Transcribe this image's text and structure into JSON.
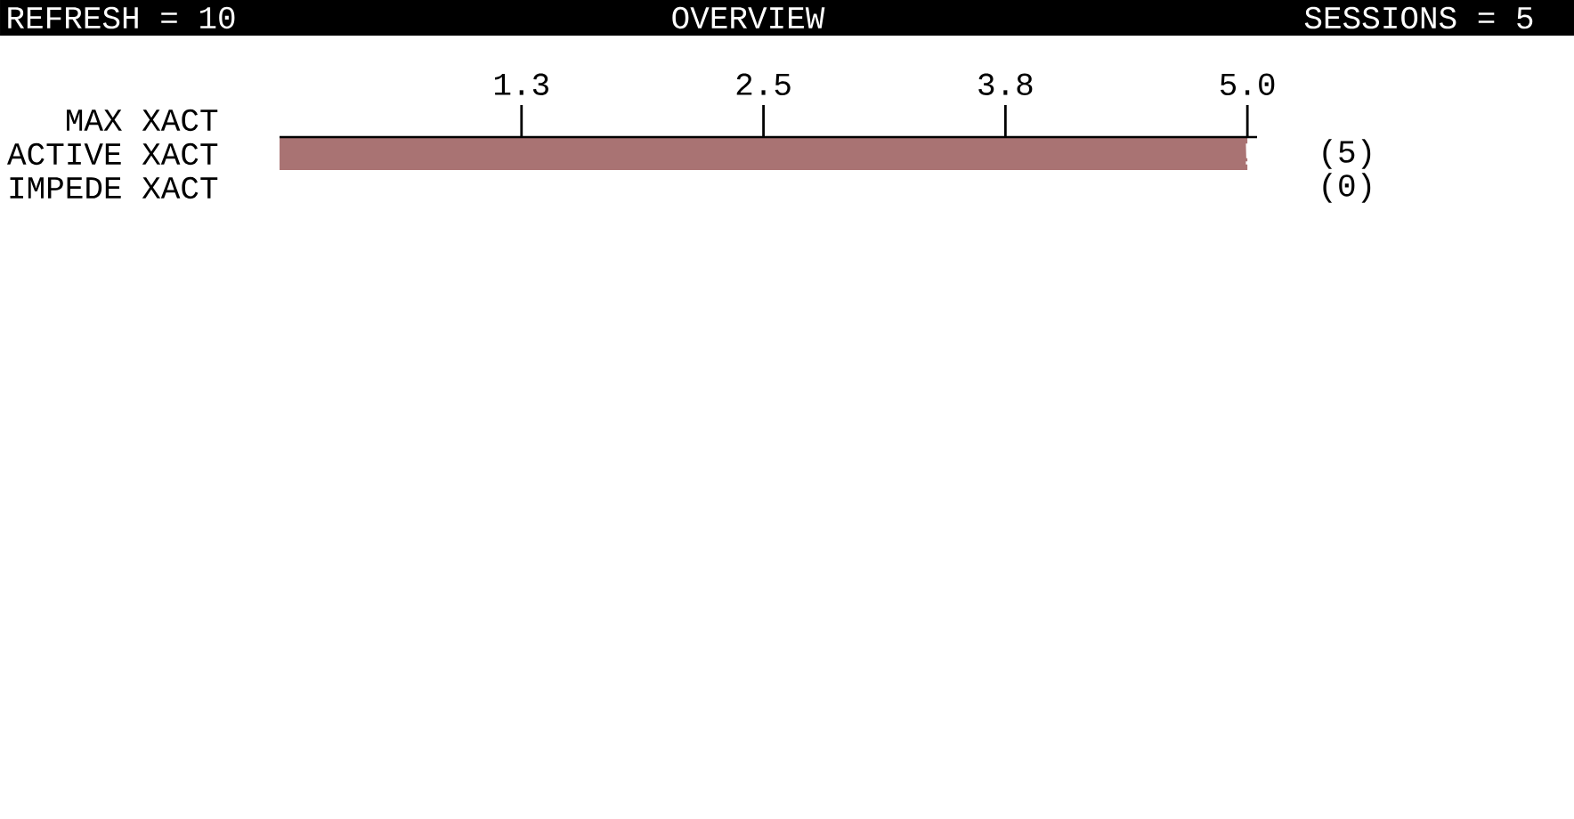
{
  "chart_data": {
    "type": "bar",
    "orientation": "horizontal",
    "title": "OVERVIEW",
    "categories": [
      "MAX XACT",
      "ACTIVE XACT",
      "IMPEDE XACT"
    ],
    "values": [
      null,
      5,
      0
    ],
    "value_labels": [
      null,
      "(5)",
      "(0)"
    ],
    "color": "#a97373",
    "xlim": [
      0,
      5.05
    ],
    "xticks": [
      {
        "value": 1.25,
        "label": "1.3"
      },
      {
        "value": 2.5,
        "label": "2.5"
      },
      {
        "value": 3.75,
        "label": "3.8"
      },
      {
        "value": 5.0,
        "label": "5.0"
      }
    ],
    "annotations": [
      "REFRESH = 10",
      "SESSIONS = 5",
      {
        "text": "!",
        "x": 5,
        "y": "ACTIVE XACT"
      }
    ]
  }
}
